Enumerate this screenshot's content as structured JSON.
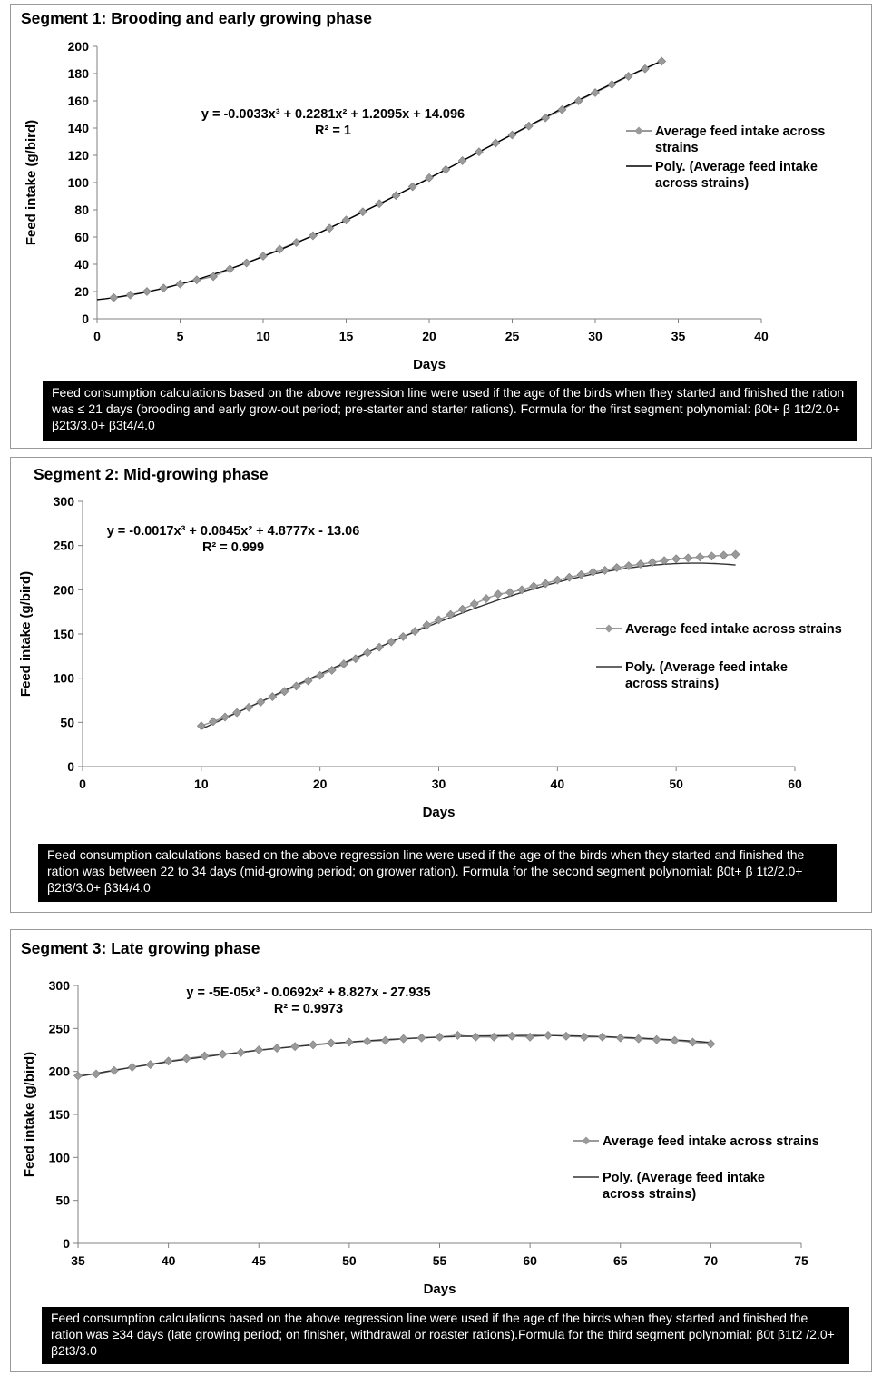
{
  "charts": [
    {
      "title": "Segment 1: Brooding and early growing phase",
      "equation": "y = -0.0033x³ + 0.2281x² + 1.2095x + 14.096",
      "r2": "R² = 1",
      "note": "Feed consumption calculations based on the above regression line were used if the age of the birds when they started and finished the ration was ≤  21 days (brooding and early grow-out period; pre-starter and starter rations). Formula for the first segment polynomial: β0t+ β 1t2/2.0+ β2t3/3.0+ β3t4/4.0"
    },
    {
      "title": "Segment 2: Mid-growing phase",
      "equation": "y = -0.0017x³ + 0.0845x² + 4.8777x - 13.06",
      "r2": "R² = 0.999",
      "note": "Feed consumption calculations based on the above regression line were used if the age of the birds when they started and finished the ration was between 22 to 34 days (mid-growing period; on grower ration). Formula for the second segment polynomial: β0t+ β 1t2/2.0+ β2t3/3.0+ β3t4/4.0"
    },
    {
      "title": "Segment 3: Late growing phase",
      "equation": "y = -5E-05x³ - 0.0692x² + 8.827x - 27.935",
      "r2": "R² = 0.9973",
      "note": "Feed consumption calculations based on the above regression line were used if the age of the birds when they started and finished the ration was ≥34 days (late growing period; on finisher, withdrawal or roaster rations).Formula for the third segment polynomial: β0t β1t2 /2.0+ β2t3/3.0"
    }
  ],
  "chart_data": [
    {
      "type": "line",
      "title": "Segment 1: Brooding and early growing phase",
      "xlabel": "Days",
      "ylabel": "Feed intake (g/bird)",
      "xlim": [
        0,
        40
      ],
      "ylim": [
        0,
        200
      ],
      "xticks": [
        0,
        5,
        10,
        15,
        20,
        25,
        30,
        35,
        40
      ],
      "yticks": [
        0,
        20,
        40,
        60,
        80,
        100,
        120,
        140,
        160,
        180,
        200
      ],
      "grid": false,
      "legend_position": "right",
      "series": [
        {
          "name": "Average feed intake across strains",
          "marker": "diamond",
          "color": "#9a9a9a",
          "x": [
            1,
            2,
            3,
            4,
            5,
            6,
            7,
            8,
            9,
            10,
            11,
            12,
            13,
            14,
            15,
            16,
            17,
            18,
            19,
            20,
            21,
            22,
            23,
            24,
            25,
            26,
            27,
            28,
            29,
            30,
            31,
            32,
            33,
            34
          ],
          "y": [
            15.5,
            17.5,
            20,
            22.5,
            25.5,
            28.5,
            31,
            36.5,
            41,
            46,
            51,
            56,
            61,
            66.5,
            72.5,
            78.5,
            84.5,
            90.5,
            97,
            103.5,
            109.5,
            116,
            122.5,
            129,
            135,
            141.5,
            147.5,
            153.5,
            160,
            166,
            172,
            178,
            183.5,
            189
          ]
        },
        {
          "name": "Poly. (Average feed intake across strains)",
          "type": "polynomial",
          "color": "#000000",
          "coefficients": [
            14.096,
            1.2095,
            0.2281,
            -0.0033
          ],
          "domain": [
            0,
            34
          ]
        }
      ],
      "equation": "y = -0.0033x³ + 0.2281x² + 1.2095x + 14.096",
      "r2": "R² = 1"
    },
    {
      "type": "line",
      "title": "Segment 2: Mid-growing phase",
      "xlabel": "Days",
      "ylabel": "Feed intake (g/bird)",
      "xlim": [
        0,
        60
      ],
      "ylim": [
        0,
        300
      ],
      "xticks": [
        0,
        10,
        20,
        30,
        40,
        50,
        60
      ],
      "yticks": [
        0,
        50,
        100,
        150,
        200,
        250,
        300
      ],
      "grid": false,
      "legend_position": "right",
      "series": [
        {
          "name": "Average feed intake across strains",
          "marker": "diamond",
          "color": "#9a9a9a",
          "x": [
            10,
            11,
            12,
            13,
            14,
            15,
            16,
            17,
            18,
            19,
            20,
            21,
            22,
            23,
            24,
            25,
            26,
            27,
            28,
            29,
            30,
            31,
            32,
            33,
            34,
            35,
            36,
            37,
            38,
            39,
            40,
            41,
            42,
            43,
            44,
            45,
            46,
            47,
            48,
            49,
            50,
            51,
            52,
            53,
            54,
            55
          ],
          "y": [
            46,
            51,
            56,
            61,
            67,
            73,
            79,
            85,
            91,
            97,
            103,
            109,
            116,
            122,
            129,
            135,
            141,
            147,
            153,
            160,
            166,
            172,
            178,
            184,
            190,
            195,
            197,
            200,
            204,
            207,
            211,
            214,
            217,
            220,
            222,
            225,
            227,
            229,
            231,
            233,
            235,
            236,
            237,
            238,
            239,
            240
          ]
        },
        {
          "name": "Poly. (Average feed intake across strains)",
          "type": "polynomial",
          "color": "#333333",
          "coefficients": [
            -13.06,
            4.8777,
            0.0845,
            -0.0017
          ],
          "domain": [
            10,
            55
          ]
        }
      ],
      "equation": "y = -0.0017x³ + 0.0845x² + 4.8777x - 13.06",
      "r2": "R² = 0.999"
    },
    {
      "type": "line",
      "title": "Segment 3: Late growing phase",
      "xlabel": "Days",
      "ylabel": "Feed intake (g/bird)",
      "xlim": [
        35,
        75
      ],
      "ylim": [
        0,
        300
      ],
      "xticks": [
        35,
        40,
        45,
        50,
        55,
        60,
        65,
        70,
        75
      ],
      "yticks": [
        0,
        50,
        100,
        150,
        200,
        250,
        300
      ],
      "grid": false,
      "legend_position": "right",
      "series": [
        {
          "name": "Average feed intake across strains",
          "marker": "diamond",
          "color": "#9a9a9a",
          "x": [
            35,
            36,
            37,
            38,
            39,
            40,
            41,
            42,
            43,
            44,
            45,
            46,
            47,
            48,
            49,
            50,
            51,
            52,
            53,
            54,
            55,
            56,
            57,
            58,
            59,
            60,
            61,
            62,
            63,
            64,
            65,
            66,
            67,
            68,
            69,
            70
          ],
          "y": [
            195,
            197,
            201,
            205,
            208,
            212,
            215,
            218,
            220,
            222,
            225,
            227,
            229,
            231,
            233,
            234,
            235,
            236,
            238,
            239,
            240,
            242,
            240,
            240,
            241,
            240,
            242,
            241,
            240,
            240,
            239,
            238,
            237,
            236,
            234,
            232
          ]
        },
        {
          "name": "Poly. (Average feed intake across strains)",
          "type": "polynomial",
          "color": "#333333",
          "coefficients": [
            -27.935,
            8.827,
            -0.0692,
            -5e-05
          ],
          "domain": [
            35,
            70
          ]
        }
      ],
      "equation": "y = -5E-05x³ - 0.0692x² + 8.827x - 27.935",
      "r2": "R² = 0.9973"
    }
  ]
}
